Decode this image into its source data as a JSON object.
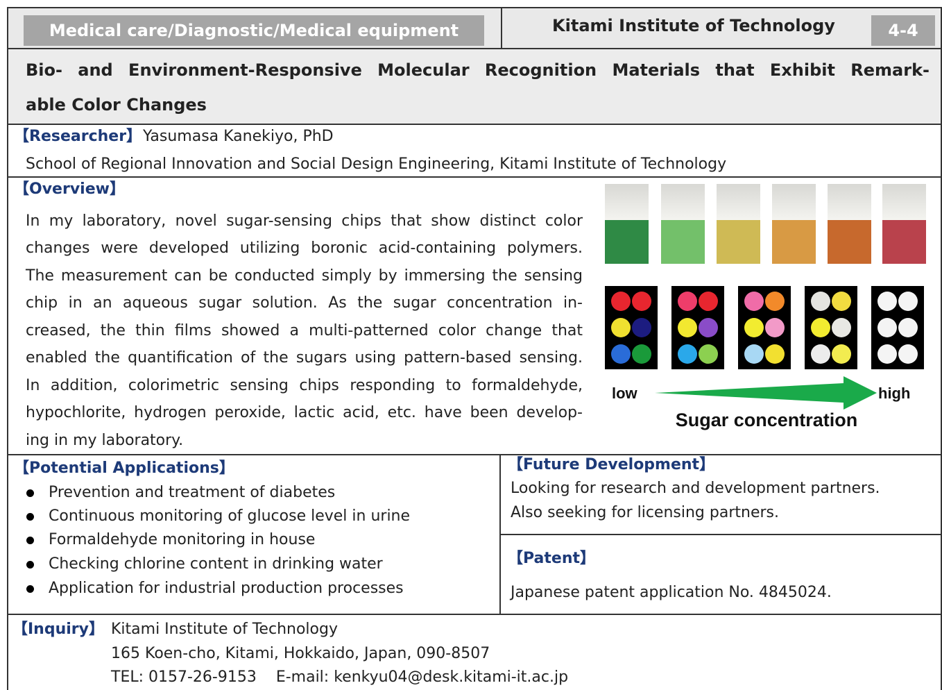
{
  "header": {
    "category": "Medical care/Diagnostic/Medical equipment",
    "institution": "Kitami Institute of Technology",
    "number": "4-4"
  },
  "title": {
    "lines": [
      "Bio- and Environment-Responsive Molecular Recognition Materials that Exhibit Remark-",
      "able Color Changes"
    ]
  },
  "researcher": {
    "label": "【Researcher】",
    "name": "Yasumasa Kanekiyo, PhD",
    "affiliation": "School of Regional Innovation and Social Design Engineering, Kitami Institute of Technology"
  },
  "overview": {
    "label": "【Overview】",
    "lines": [
      "In my laboratory, novel sugar-sensing chips that show distinct color",
      "changes were developed utilizing boronic acid-containing polymers.",
      "The measurement can be conducted simply by immersing the sensing",
      "chip in an aqueous sugar solution. As the sugar concentration in-",
      "creased, the thin films showed a multi-patterned color change that",
      "enabled the quantification of the sugars using pattern-based sensing.",
      "In addition, colorimetric sensing chips responding to formaldehyde,",
      "hypochlorite, hydrogen peroxide, lactic acid, etc. have been develop-",
      "ing in my laboratory."
    ]
  },
  "figure": {
    "low": "low",
    "high": "high",
    "caption": "Sugar concentration"
  },
  "applications": {
    "label": "【Potential Applications】",
    "items": [
      "Prevention and treatment of diabetes",
      "Continuous monitoring of glucose level in urine",
      "Formaldehyde monitoring in house",
      "Checking chlorine content in drinking water",
      "Application for industrial production processes"
    ]
  },
  "future": {
    "label": "【Future Development】",
    "lines": [
      "Looking for research and development partners.",
      "Also seeking for licensing partners."
    ]
  },
  "patent": {
    "label": "【Patent】",
    "text": "Japanese patent application No. 4845024."
  },
  "inquiry": {
    "label": "【Inquiry】",
    "lines": [
      "Kitami Institute of Technology",
      "165 Koen-cho, Kitami, Hokkaido, Japan, 090-8507",
      "TEL: 0157-26-9153    E-mail: kenkyu04@desk.kitami-it.ac.jp"
    ]
  }
}
